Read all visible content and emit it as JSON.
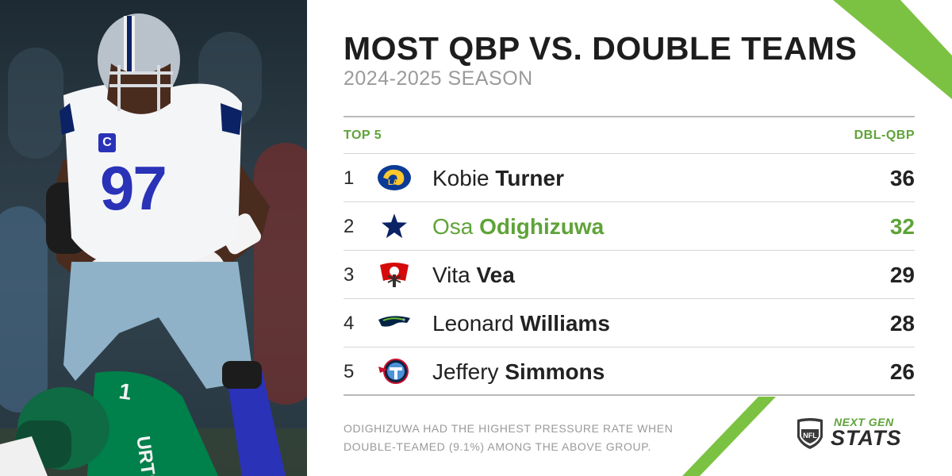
{
  "graphic": {
    "title": "MOST QBP VS. DOUBLE TEAMS",
    "subtitle": "2024-2025 SEASON",
    "table_header_left": "TOP 5",
    "table_header_right": "DBL-QBP",
    "rows": [
      {
        "rank": "1",
        "team_icon": "rams-logo-icon",
        "first": "Kobie",
        "last": "Turner",
        "value": "36",
        "highlight": false
      },
      {
        "rank": "2",
        "team_icon": "cowboys-star-icon",
        "first": "Osa",
        "last": "Odighizuwa",
        "value": "32",
        "highlight": true
      },
      {
        "rank": "3",
        "team_icon": "buccaneers-flag-icon",
        "first": "Vita",
        "last": "Vea",
        "value": "29",
        "highlight": false
      },
      {
        "rank": "4",
        "team_icon": "seahawks-logo-icon",
        "first": "Leonard",
        "last": "Williams",
        "value": "28",
        "highlight": false
      },
      {
        "rank": "5",
        "team_icon": "titans-logo-icon",
        "first": "Jeffery",
        "last": "Simmons",
        "value": "26",
        "highlight": false
      }
    ],
    "footnote": "ODIGHIZUWA HAD THE HIGHEST PRESSURE RATE WHEN DOUBLE-TEAMED (9.1%) AMONG THE ABOVE GROUP.",
    "brand": {
      "shield_text": "NFL",
      "line1": "NEXT GEN",
      "line2": "STATS"
    },
    "photo": {
      "jersey_number": "97",
      "captain_patch": "C",
      "opponent_number": "1",
      "opponent_name": "URTS"
    }
  },
  "colors": {
    "accent_green": "#5fa339",
    "deco_green": "#7cc242",
    "text_dark": "#1d1d1d",
    "text_gray": "#9a9a9a",
    "cowboys_navy": "#0b2265",
    "eagles_green": "#00804a"
  }
}
